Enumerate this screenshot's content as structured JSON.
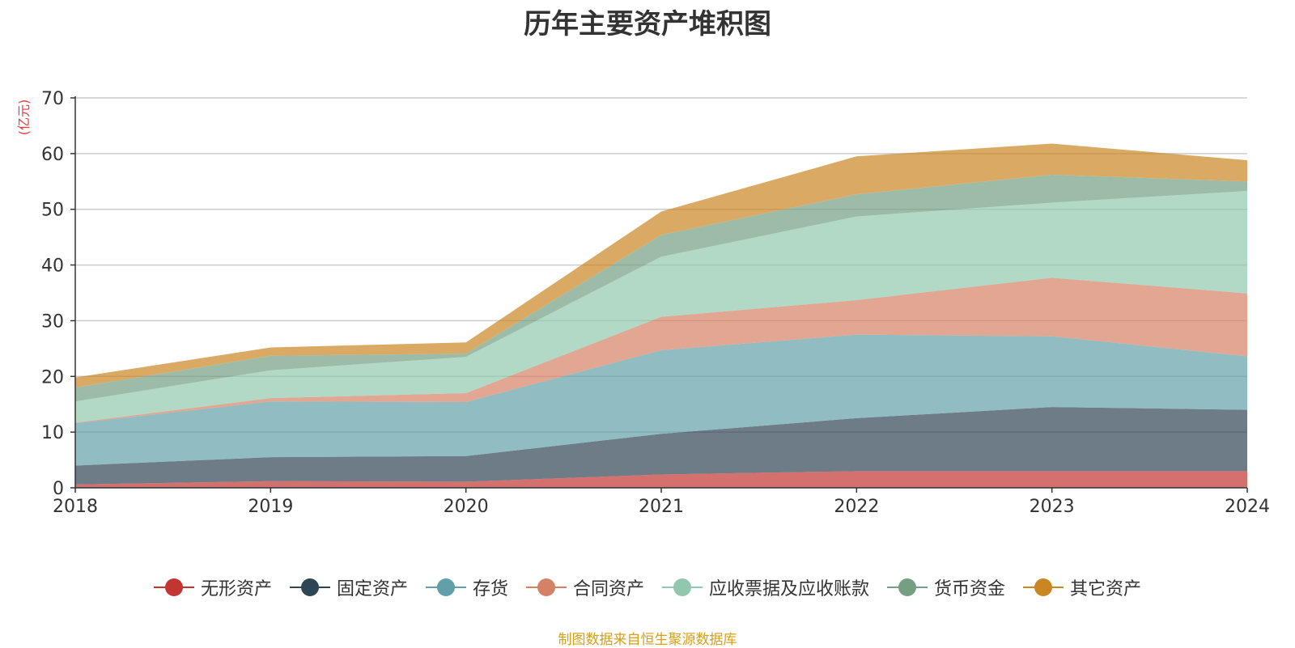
{
  "chart_data": {
    "type": "area",
    "stacked": true,
    "title": "历年主要资产堆积图",
    "ylabel": "(亿元)",
    "xlabel": "",
    "x": [
      "2018",
      "2019",
      "2020",
      "2021",
      "2022",
      "2023",
      "2024"
    ],
    "ylim": [
      0,
      70
    ],
    "yticks": [
      0,
      10,
      20,
      30,
      40,
      50,
      60,
      70
    ],
    "grid": true,
    "legend_position": "bottom",
    "series": [
      {
        "name": "无形资产",
        "color": "#c23531",
        "values": [
          0.6,
          1.2,
          1.1,
          2.4,
          3.0,
          3.0,
          3.0
        ]
      },
      {
        "name": "固定资产",
        "color": "#2f4554",
        "values": [
          3.4,
          4.3,
          4.6,
          7.3,
          9.5,
          11.5,
          11.0
        ]
      },
      {
        "name": "存货",
        "color": "#61a0a8",
        "values": [
          7.6,
          10.0,
          9.7,
          15.0,
          15.0,
          12.7,
          9.6
        ]
      },
      {
        "name": "合同资产",
        "color": "#d48265",
        "values": [
          0.1,
          0.6,
          1.6,
          6.0,
          6.2,
          10.5,
          11.3
        ]
      },
      {
        "name": "应收票据及应收账款",
        "color": "#91c7ae",
        "values": [
          3.8,
          5.0,
          6.5,
          10.8,
          15.0,
          13.5,
          18.4
        ]
      },
      {
        "name": "货币资金",
        "color": "#749f83",
        "values": [
          2.5,
          2.6,
          0.6,
          3.9,
          4.0,
          5.0,
          1.7
        ]
      },
      {
        "name": "其它资产",
        "color": "#ca8622",
        "values": [
          1.8,
          1.5,
          2.0,
          4.2,
          6.8,
          5.6,
          3.8
        ]
      }
    ]
  },
  "footer": {
    "source": "制图数据来自恒生聚源数据库"
  }
}
